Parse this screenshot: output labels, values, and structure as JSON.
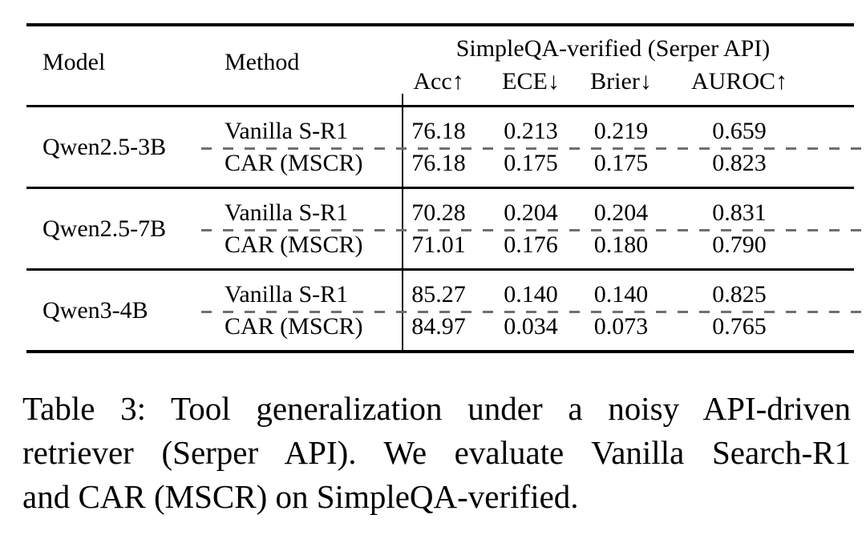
{
  "table": {
    "header": {
      "model": "Model",
      "method": "Method",
      "group_title": "SimpleQA-verified (Serper API)",
      "metrics": [
        "Acc↑",
        "ECE↓",
        "Brier↓",
        "AUROC↑"
      ]
    },
    "groups": [
      {
        "model": "Qwen2.5-3B",
        "rows": [
          {
            "method": "Vanilla S-R1",
            "acc": "76.18",
            "ece": "0.213",
            "brier": "0.219",
            "auroc": "0.659"
          },
          {
            "method": "CAR (MSCR)",
            "acc": "76.18",
            "ece": "0.175",
            "brier": "0.175",
            "auroc": "0.823"
          }
        ]
      },
      {
        "model": "Qwen2.5-7B",
        "rows": [
          {
            "method": "Vanilla S-R1",
            "acc": "70.28",
            "ece": "0.204",
            "brier": "0.204",
            "auroc": "0.831"
          },
          {
            "method": "CAR (MSCR)",
            "acc": "71.01",
            "ece": "0.176",
            "brier": "0.180",
            "auroc": "0.790"
          }
        ]
      },
      {
        "model": "Qwen3-4B",
        "rows": [
          {
            "method": "Vanilla S-R1",
            "acc": "85.27",
            "ece": "0.140",
            "brier": "0.140",
            "auroc": "0.825"
          },
          {
            "method": "CAR (MSCR)",
            "acc": "84.97",
            "ece": "0.034",
            "brier": "0.073",
            "auroc": "0.765"
          }
        ]
      }
    ]
  },
  "caption": {
    "lines": [
      "Table 3: Tool generalization under a noisy API-driven",
      "retriever (Serper API). We evaluate Vanilla Search-R1",
      "and CAR (MSCR) on SimpleQA-verified."
    ],
    "full_text": "Table 3: Tool generalization under a noisy API-driven retriever (Serper API). We evaluate Vanilla Search-R1 and CAR (MSCR) on SimpleQA-verified."
  },
  "colors": {
    "background": "#ffffff",
    "text": "#000000",
    "rule": "#000000",
    "dash": "#6f6f6f"
  }
}
